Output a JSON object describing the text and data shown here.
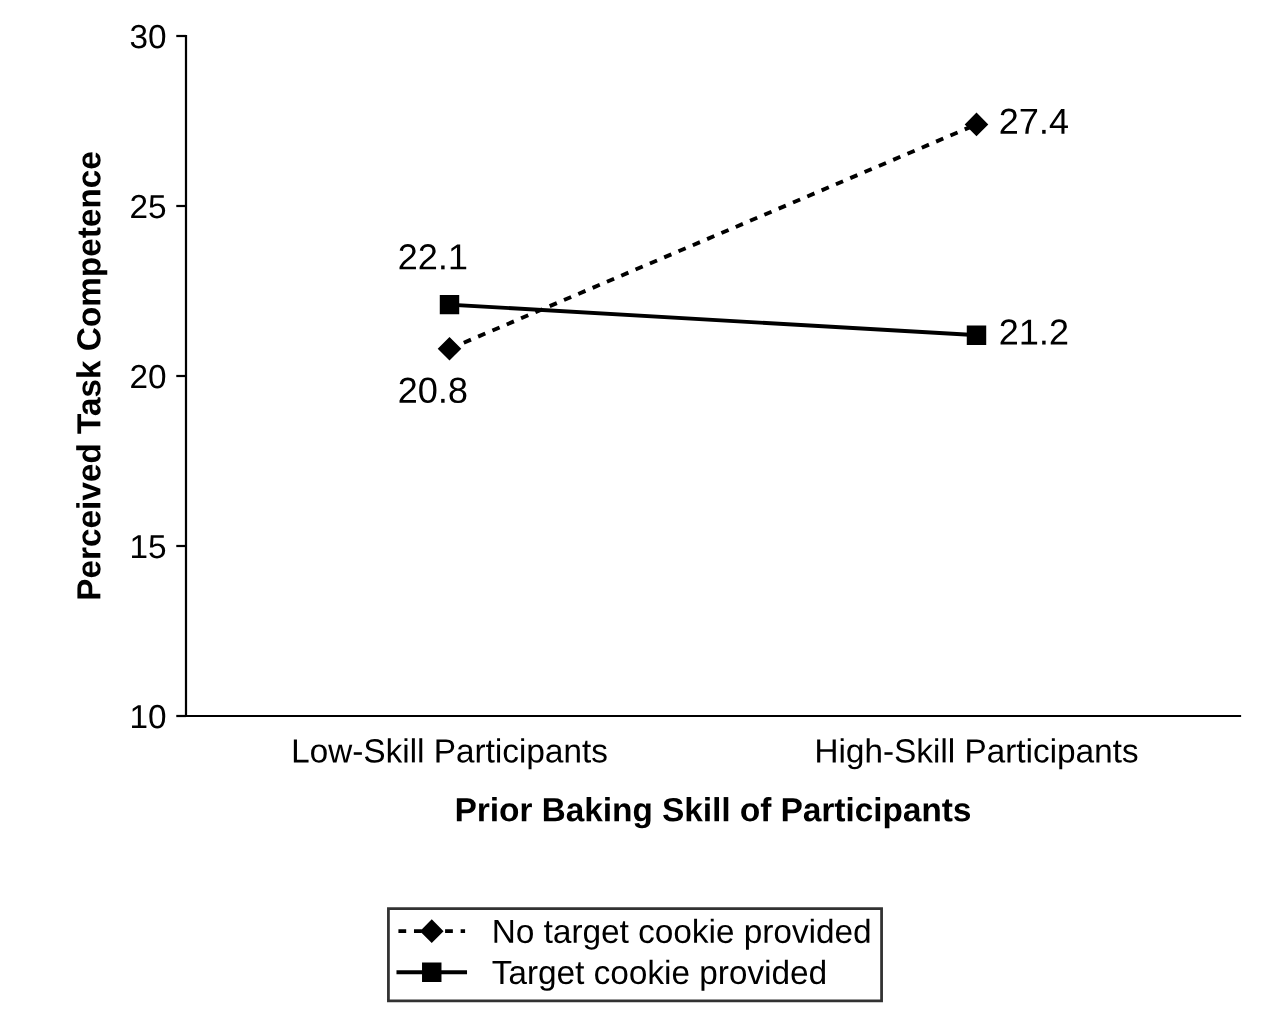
{
  "chart_data": {
    "type": "line",
    "xlabel": "Prior Baking Skill of Participants",
    "ylabel": "Perceived Task Competence",
    "categories": [
      "Low-Skill Participants",
      "High-Skill Participants"
    ],
    "series": [
      {
        "name": "No target cookie provided",
        "color": "#000000",
        "values": [
          20.8,
          27.4
        ],
        "marker": "diamond",
        "line_style": "dotted"
      },
      {
        "name": "Target cookie provided",
        "color": "#000000",
        "values": [
          22.1,
          21.2
        ],
        "marker": "square",
        "line_style": "solid"
      }
    ],
    "ylim": [
      10,
      30
    ],
    "yticks": [
      10,
      15,
      20,
      25,
      30
    ],
    "grid": false,
    "legend": "bottom",
    "data_labels": true
  }
}
